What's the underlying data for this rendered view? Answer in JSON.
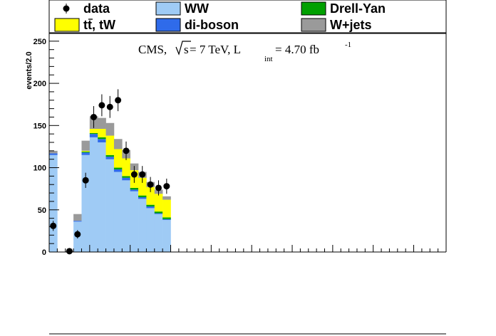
{
  "chart_data": {
    "type": "bar",
    "stacked": true,
    "ylabel": "events/2.0",
    "xlabel": "",
    "ylim": [
      0,
      260
    ],
    "x_bin_width": 2.0,
    "x_range": [
      0,
      49
    ],
    "yticks": [
      "0",
      "50",
      "100",
      "150",
      "200",
      "250"
    ],
    "annotation": {
      "prefix": "CMS, ",
      "sqrt": "s",
      "energy": " = 7 TeV, L",
      "sub": "int",
      "lumi": " = 4.70 fb",
      "sup": "-1"
    },
    "legend": [
      {
        "key": "data",
        "label": "data",
        "style": "marker",
        "color": "#000000"
      },
      {
        "key": "ww",
        "label": "WW",
        "style": "box",
        "color": "#9fcbf5"
      },
      {
        "key": "dy",
        "label": "Drell-Yan",
        "style": "box",
        "color": "#00a000"
      },
      {
        "key": "top",
        "label_main": "tt",
        "label_rest": ", tW",
        "style": "box",
        "color": "#ffff00"
      },
      {
        "key": "diboson",
        "label": "di-boson",
        "style": "box",
        "color": "#2f6bea"
      },
      {
        "key": "wjets",
        "label": "W+jets",
        "style": "box",
        "color": "#9a9a9a"
      }
    ],
    "series": [
      {
        "name": "WW",
        "color": "#9fcbf5",
        "values": [
          115,
          0,
          0,
          36,
          115,
          136,
          130,
          110,
          95,
          85,
          72,
          63,
          52,
          45,
          38
        ]
      },
      {
        "name": "di-boson",
        "color": "#2f6bea",
        "values": [
          2,
          0,
          0,
          1,
          3,
          4,
          4,
          3,
          3,
          3,
          2,
          2,
          2,
          1,
          1
        ]
      },
      {
        "name": "Drell-Yan",
        "color": "#00a000",
        "values": [
          0,
          0,
          0,
          0,
          1,
          1,
          2,
          2,
          2,
          2,
          2,
          2,
          2,
          2,
          2
        ]
      },
      {
        "name": "tt, tW",
        "color": "#ffff00",
        "values": [
          0,
          0,
          0,
          0,
          1,
          5,
          10,
          23,
          22,
          21,
          21,
          21,
          21,
          21,
          21
        ]
      },
      {
        "name": "W+jets",
        "color": "#9a9a9a",
        "values": [
          3,
          0,
          1,
          8,
          12,
          15,
          13,
          15,
          12,
          10,
          8,
          7,
          6,
          5,
          4
        ]
      }
    ],
    "data_points": {
      "x": [
        0.5,
        2.5,
        3.5,
        4.5,
        5.5,
        6.5,
        7.5,
        8.5,
        9.5,
        10.5,
        11.5,
        12.5,
        13.5,
        14.5,
        15.5,
        16.5,
        17.5
      ],
      "y": [
        31,
        1,
        21,
        85,
        160,
        174,
        172,
        180,
        120,
        92,
        92,
        80,
        76,
        78,
        0,
        0,
        0
      ],
      "err": [
        6,
        1,
        5,
        9,
        13,
        13,
        13,
        13,
        11,
        10,
        10,
        9,
        9,
        9,
        0,
        0,
        0
      ]
    }
  }
}
